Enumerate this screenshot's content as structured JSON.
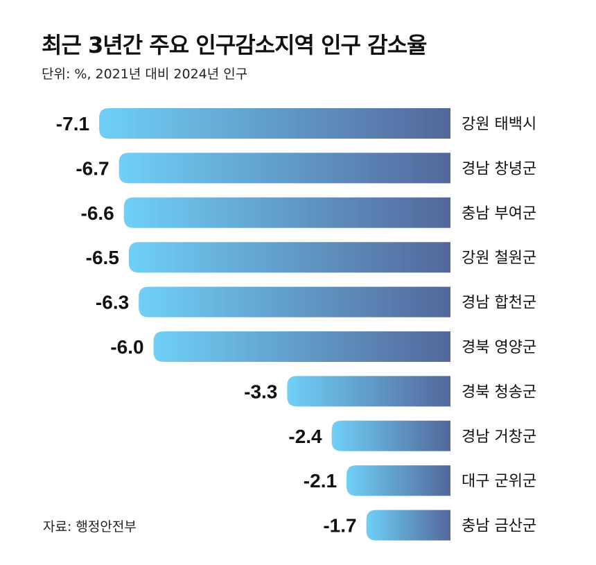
{
  "title": "최근 3년간 주요 인구감소지역 인구 감소율",
  "subtitle": "단위: %, 2021년 대비 2024년 인구",
  "source": "자료: 행정안전부",
  "colors": {
    "bar_start": "#6fd0f7",
    "bar_end": "#53679a",
    "text": "#111111"
  },
  "chart_data": {
    "type": "bar",
    "orientation": "horizontal",
    "categories": [
      "강원 태백시",
      "경남 창녕군",
      "충남 부여군",
      "강원 철원군",
      "경남 합천군",
      "경북 영양군",
      "경북 청송군",
      "경남 거창군",
      "대구 군위군",
      "충남 금산군"
    ],
    "values": [
      -7.1,
      -6.7,
      -6.6,
      -6.5,
      -6.3,
      -6.0,
      -3.3,
      -2.4,
      -2.1,
      -1.7
    ],
    "value_labels": [
      "-7.1",
      "-6.7",
      "-6.6",
      "-6.5",
      "-6.3",
      "-6.0",
      "-3.3",
      "-2.4",
      "-2.1",
      "-1.7"
    ]
  }
}
